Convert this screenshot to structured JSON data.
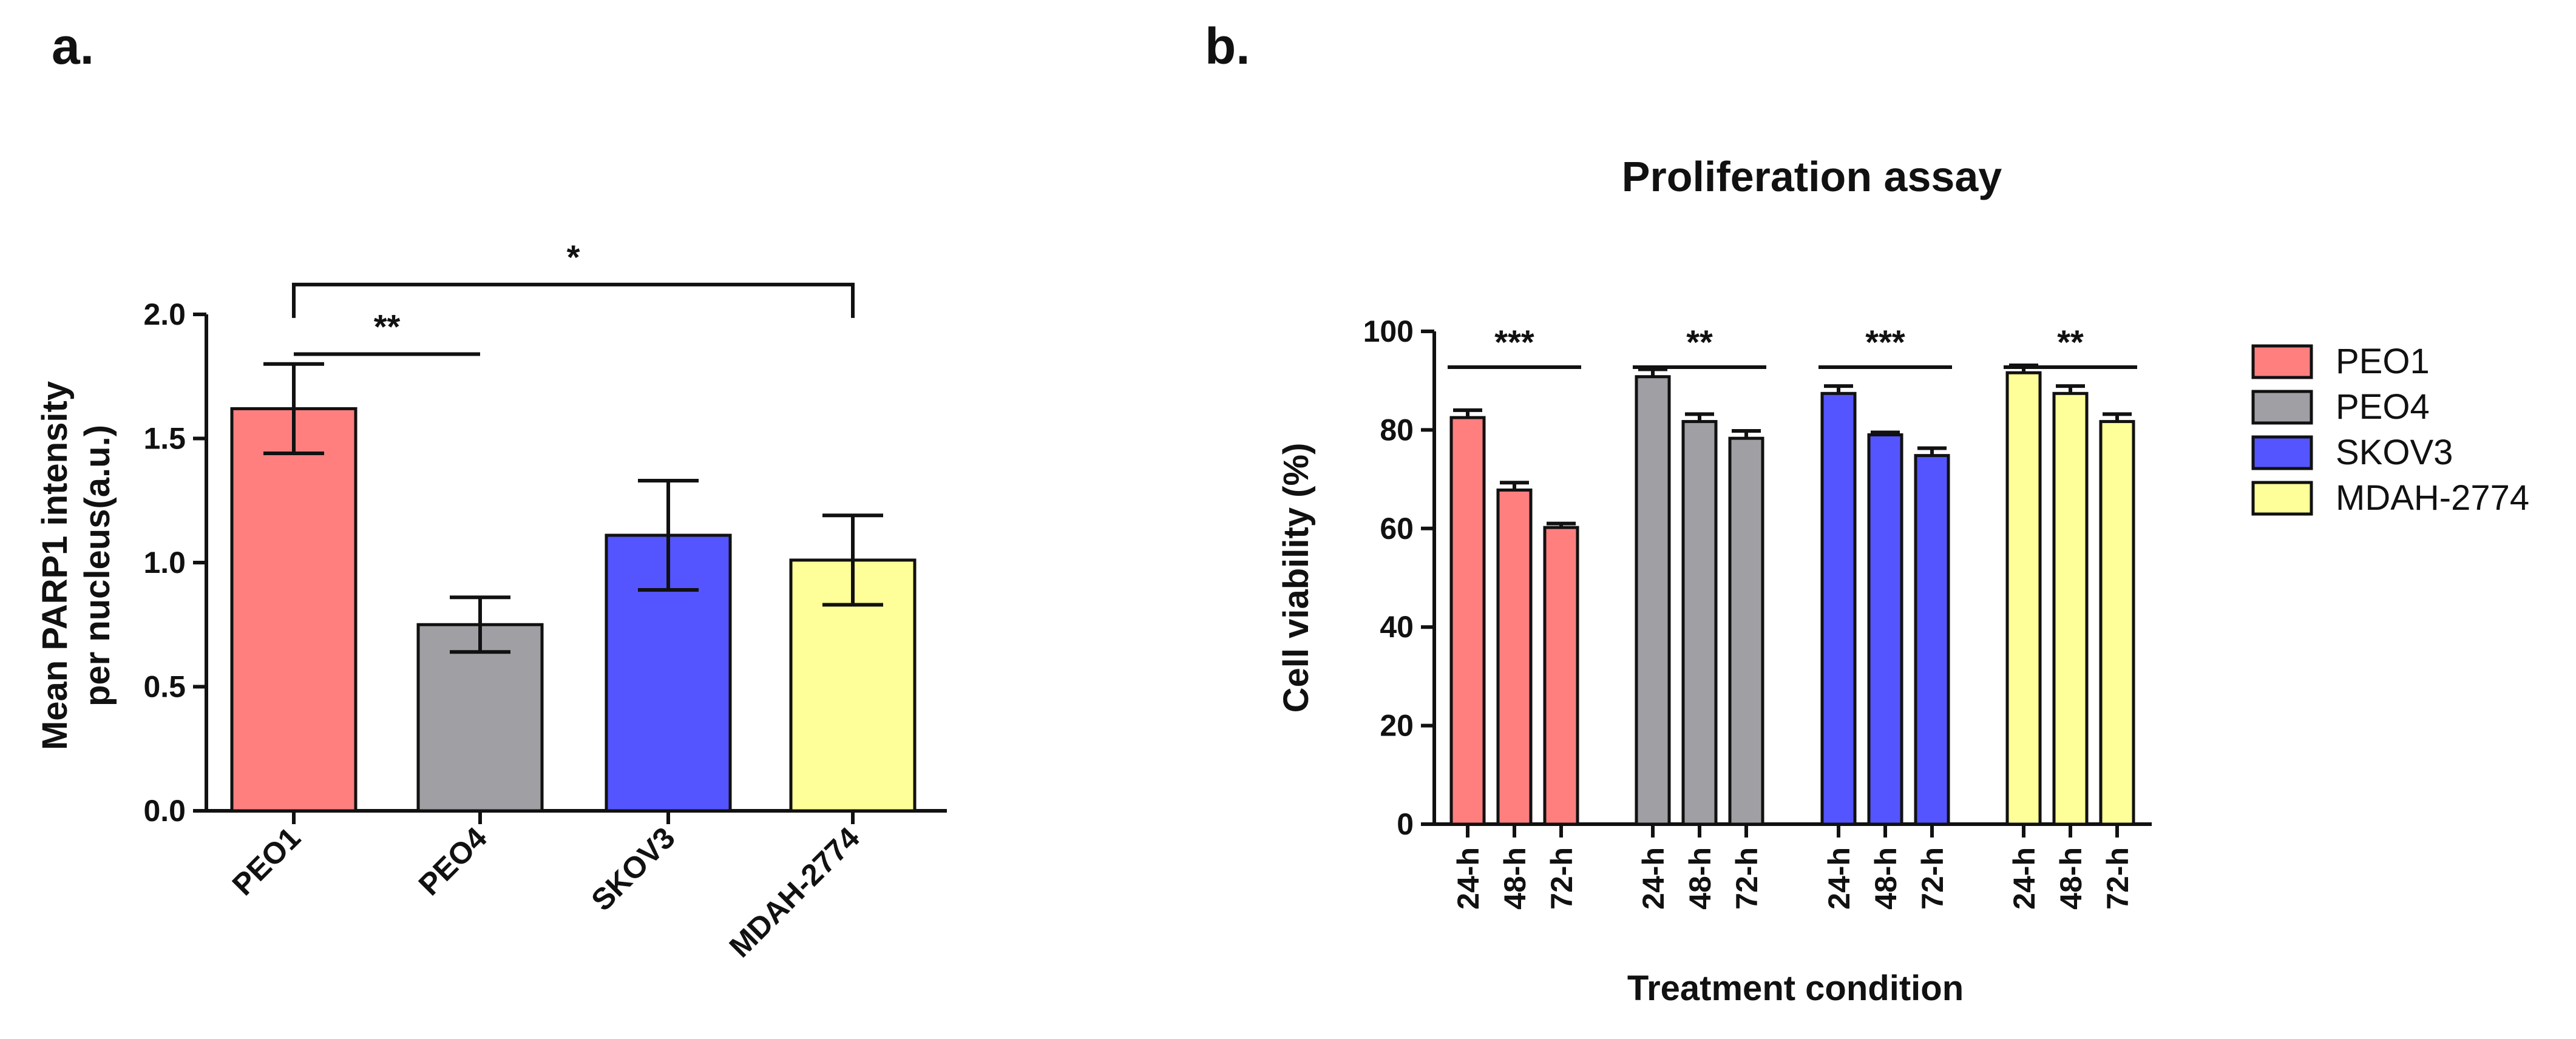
{
  "colors": {
    "PEO1": "#ff7f7f",
    "PEO4": "#a0a0a4",
    "SKOV3": "#5555ff",
    "MDAH-2774": "#ffff99"
  },
  "chart_data": [
    {
      "panel": "a.",
      "type": "bar",
      "title": "",
      "xlabel": "",
      "ylabel": "Mean PARP1 intensity per nucleus(a.u.)",
      "ylabel_lines": [
        "Mean PARP1 intensity",
        "per nucleus(a.u.)"
      ],
      "ylim": [
        0,
        2.0
      ],
      "yticks": [
        "0.0",
        "0.5",
        "1.0",
        "1.5",
        "2.0"
      ],
      "categories": [
        "PEO1",
        "PEO4",
        "SKOV3",
        "MDAH-2774"
      ],
      "tick_labels": [
        "PEO1",
        "PEO4",
        "SKOV3",
        "MDAH-2774"
      ],
      "values": [
        1.62,
        0.75,
        1.11,
        1.01
      ],
      "errors": [
        0.18,
        0.11,
        0.22,
        0.18
      ],
      "significance": [
        {
          "from": 0,
          "to": 1,
          "label": "**",
          "height": 1.84
        },
        {
          "from": 0,
          "to": 3,
          "label": "*",
          "height": 2.12
        }
      ]
    },
    {
      "panel": "b.",
      "type": "bar",
      "title": "Proliferation assay",
      "xlabel": "Treatment condition",
      "ylabel": "Cell viability (%)",
      "ylim": [
        0,
        100
      ],
      "yticks": [
        "0",
        "20",
        "40",
        "60",
        "80",
        "100"
      ],
      "categories": [
        "24-h",
        "48-h",
        "72-h"
      ],
      "series": [
        {
          "name": "PEO1",
          "values": [
            82.5,
            67.8,
            60.2
          ],
          "errors": [
            1.5,
            1.5,
            0.8
          ],
          "significance": "***"
        },
        {
          "name": "PEO4",
          "values": [
            90.8,
            81.7,
            78.3
          ],
          "errors": [
            1.5,
            1.5,
            1.5
          ],
          "significance": "**"
        },
        {
          "name": "SKOV3",
          "values": [
            87.4,
            79.0,
            74.8
          ],
          "errors": [
            1.5,
            0.5,
            1.5
          ],
          "significance": "***"
        },
        {
          "name": "MDAH-2774",
          "values": [
            91.6,
            87.4,
            81.7
          ],
          "errors": [
            1.5,
            1.5,
            1.5
          ],
          "significance": "**"
        }
      ],
      "legend": [
        "PEO1",
        "PEO4",
        "SKOV3",
        "MDAH-2774"
      ],
      "legend_position": "right"
    }
  ]
}
